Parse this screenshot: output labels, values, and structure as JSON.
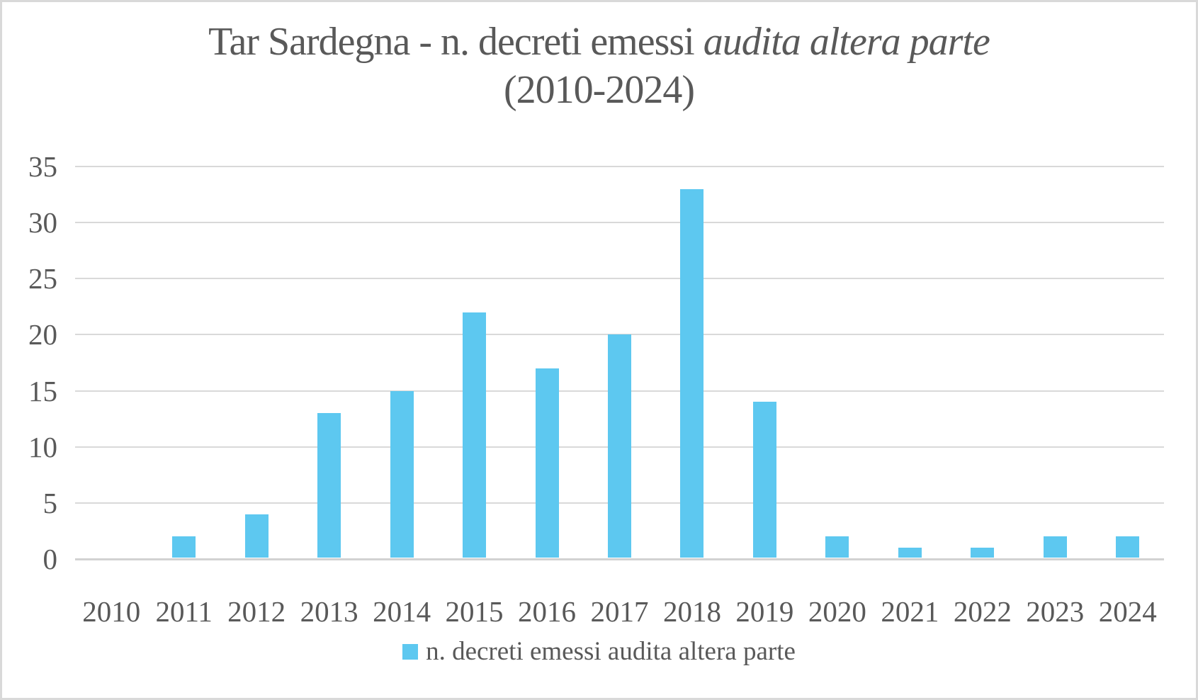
{
  "title": {
    "main": "Tar Sardegna - n. decreti emessi ",
    "italic": "audita altera parte",
    "line2": "(2010-2024)"
  },
  "legend": {
    "label": "n. decreti emessi audita altera parte"
  },
  "colors": {
    "bar": "#5dc8f0",
    "text": "#595959",
    "gridline": "#d9d9d9",
    "axis_line": "#d2d2d2",
    "border": "#d9d9d9",
    "background": "#ffffff"
  },
  "chart_data": {
    "type": "bar",
    "title": "Tar Sardegna - n. decreti emessi audita altera parte (2010-2024)",
    "categories": [
      "2010",
      "2011",
      "2012",
      "2013",
      "2014",
      "2015",
      "2016",
      "2017",
      "2018",
      "2019",
      "2020",
      "2021",
      "2022",
      "2023",
      "2024"
    ],
    "series": [
      {
        "name": "n. decreti emessi audita altera parte",
        "values": [
          0,
          2,
          4,
          13,
          15,
          22,
          17,
          20,
          33,
          14,
          2,
          1,
          1,
          2,
          2
        ]
      }
    ],
    "xlabel": "",
    "ylabel": "",
    "ylim": [
      0,
      35
    ],
    "yticks": [
      0,
      5,
      10,
      15,
      20,
      25,
      30,
      35
    ],
    "grid": true,
    "legend_position": "bottom"
  }
}
